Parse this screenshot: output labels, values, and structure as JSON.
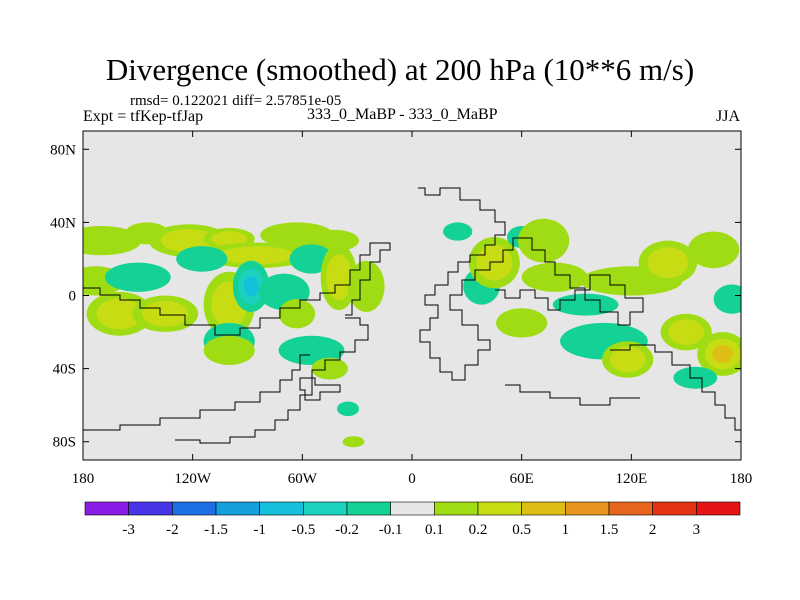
{
  "header": {
    "title": "Divergence (smoothed) at 200 hPa (10**6 m/s)",
    "stats": "rmsd= 0.122021 diff= 2.57851e-05",
    "expt": "Expt = tfKep-tfJap",
    "center": "333_0_MaBP - 333_0_MaBP",
    "season": "JJA"
  },
  "chart_data": {
    "type": "heatmap",
    "title": "Divergence (smoothed) at 200 hPa (10**6 m/s)",
    "x_ticks": [
      "180",
      "120W",
      "60W",
      "0",
      "60E",
      "120E",
      "180"
    ],
    "x_values": [
      -180,
      -120,
      -60,
      0,
      60,
      120,
      180
    ],
    "y_ticks": [
      "80N",
      "40N",
      "0",
      "40S",
      "80S"
    ],
    "y_values": [
      80,
      40,
      0,
      -40,
      -80
    ],
    "xlim": [
      -180,
      180
    ],
    "ylim": [
      -90,
      90
    ],
    "background": "#e6e6e6",
    "colorbar": {
      "labels": [
        "-3",
        "-2",
        "-1.5",
        "-1",
        "-0.5",
        "-0.2",
        "-0.1",
        "0.1",
        "0.2",
        "0.5",
        "1",
        "1.5",
        "2",
        "3"
      ],
      "colors": [
        "#8b1ee6",
        "#4634e6",
        "#1e6ee6",
        "#14a0dc",
        "#14c0dc",
        "#1ad2be",
        "#14d296",
        "#e6e6e6",
        "#a0dc14",
        "#c8dc14",
        "#dcbe14",
        "#e6961e",
        "#e6641e",
        "#e63214",
        "#e61414"
      ]
    },
    "blobs": [
      {
        "lon": -170,
        "lat": 30,
        "w": 22,
        "h": 8,
        "v": 0.15
      },
      {
        "lon": -145,
        "lat": 34,
        "w": 12,
        "h": 6,
        "v": 0.15
      },
      {
        "lon": -122,
        "lat": 30,
        "w": 22,
        "h": 9,
        "v": 0.3
      },
      {
        "lon": -100,
        "lat": 31,
        "w": 14,
        "h": 6,
        "v": 0.3
      },
      {
        "lon": -85,
        "lat": 22,
        "w": 30,
        "h": 7,
        "v": 0.5
      },
      {
        "lon": -63,
        "lat": 33,
        "w": 20,
        "h": 7,
        "v": 0.15
      },
      {
        "lon": -43,
        "lat": 30,
        "w": 14,
        "h": 6,
        "v": 0.15
      },
      {
        "lon": -173,
        "lat": 8,
        "w": 16,
        "h": 8,
        "v": 0.2
      },
      {
        "lon": -160,
        "lat": -10,
        "w": 18,
        "h": 12,
        "v": 0.5
      },
      {
        "lon": -135,
        "lat": -10,
        "w": 18,
        "h": 10,
        "v": 0.5
      },
      {
        "lon": -150,
        "lat": 10,
        "w": 18,
        "h": 8,
        "v": -0.25
      },
      {
        "lon": -115,
        "lat": 20,
        "w": 14,
        "h": 7,
        "v": -0.25
      },
      {
        "lon": -100,
        "lat": -5,
        "w": 14,
        "h": 18,
        "v": 0.3
      },
      {
        "lon": -88,
        "lat": 5,
        "w": 10,
        "h": 14,
        "v": -0.6
      },
      {
        "lon": -70,
        "lat": 2,
        "w": 14,
        "h": 10,
        "v": -0.25
      },
      {
        "lon": -63,
        "lat": -10,
        "w": 10,
        "h": 8,
        "v": 0.15
      },
      {
        "lon": -55,
        "lat": 20,
        "w": 12,
        "h": 8,
        "v": -0.25
      },
      {
        "lon": -40,
        "lat": 10,
        "w": 10,
        "h": 18,
        "v": 0.3
      },
      {
        "lon": -25,
        "lat": 5,
        "w": 10,
        "h": 14,
        "v": 0.2
      },
      {
        "lon": -100,
        "lat": -25,
        "w": 14,
        "h": 10,
        "v": -0.25
      },
      {
        "lon": -100,
        "lat": -30,
        "w": 14,
        "h": 8,
        "v": 0.15
      },
      {
        "lon": -55,
        "lat": -30,
        "w": 18,
        "h": 8,
        "v": -0.25
      },
      {
        "lon": -45,
        "lat": -40,
        "w": 10,
        "h": 6,
        "v": 0.2
      },
      {
        "lon": -35,
        "lat": -62,
        "w": 6,
        "h": 4,
        "v": -0.25
      },
      {
        "lon": -32,
        "lat": -80,
        "w": 6,
        "h": 3,
        "v": 0.15
      },
      {
        "lon": 25,
        "lat": 35,
        "w": 8,
        "h": 5,
        "v": -0.25
      },
      {
        "lon": 38,
        "lat": 5,
        "w": 10,
        "h": 10,
        "v": -0.25
      },
      {
        "lon": 45,
        "lat": 18,
        "w": 14,
        "h": 14,
        "v": 0.5
      },
      {
        "lon": 60,
        "lat": 32,
        "w": 8,
        "h": 6,
        "v": -0.25
      },
      {
        "lon": 72,
        "lat": 30,
        "w": 14,
        "h": 12,
        "v": 0.2
      },
      {
        "lon": 78,
        "lat": 10,
        "w": 18,
        "h": 8,
        "v": 0.2
      },
      {
        "lon": 95,
        "lat": -5,
        "w": 18,
        "h": 6,
        "v": -0.25
      },
      {
        "lon": 60,
        "lat": -15,
        "w": 14,
        "h": 8,
        "v": 0.2
      },
      {
        "lon": 105,
        "lat": -25,
        "w": 24,
        "h": 10,
        "v": -0.25
      },
      {
        "lon": 120,
        "lat": 8,
        "w": 28,
        "h": 8,
        "v": 0.15
      },
      {
        "lon": 140,
        "lat": 18,
        "w": 16,
        "h": 12,
        "v": 0.5
      },
      {
        "lon": 165,
        "lat": 25,
        "w": 14,
        "h": 10,
        "v": 0.15
      },
      {
        "lon": 118,
        "lat": -35,
        "w": 14,
        "h": 10,
        "v": 0.5
      },
      {
        "lon": 150,
        "lat": -20,
        "w": 14,
        "h": 10,
        "v": 0.3
      },
      {
        "lon": 170,
        "lat": -32,
        "w": 14,
        "h": 12,
        "v": 0.6
      },
      {
        "lon": 155,
        "lat": -45,
        "w": 12,
        "h": 6,
        "v": -0.25
      },
      {
        "lon": 175,
        "lat": -2,
        "w": 10,
        "h": 8,
        "v": -0.25
      }
    ]
  }
}
